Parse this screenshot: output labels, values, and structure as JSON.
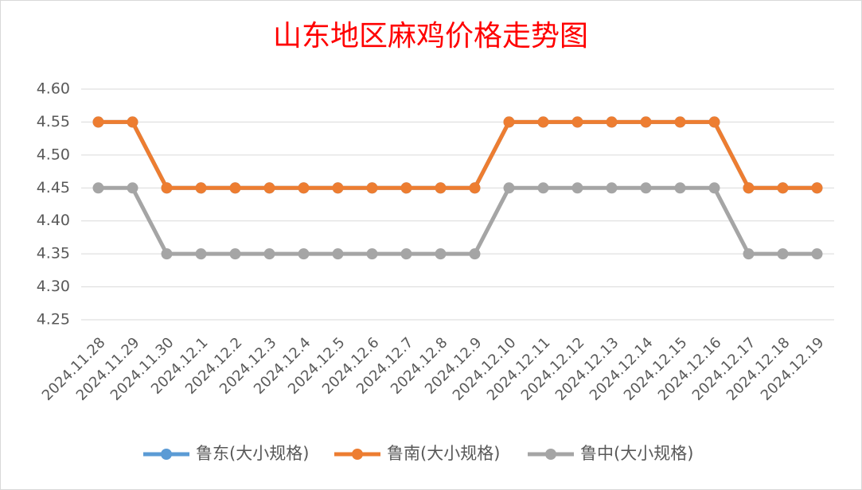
{
  "chart_data": {
    "type": "line",
    "title": "山东地区麻鸡价格走势图",
    "categories": [
      "2024.11.28",
      "2024.11.29",
      "2024.11.30",
      "2024.12.1",
      "2024.12.2",
      "2024.12.3",
      "2024.12.4",
      "2024.12.5",
      "2024.12.6",
      "2024.12.7",
      "2024.12.8",
      "2024.12.9",
      "2024.12.10",
      "2024.12.11",
      "2024.12.12",
      "2024.12.13",
      "2024.12.14",
      "2024.12.15",
      "2024.12.16",
      "2024.12.17",
      "2024.12.18",
      "2024.12.19"
    ],
    "series": [
      {
        "name": "鲁东(大小规格)",
        "color": "#5b9bd5",
        "values": [
          4.55,
          4.55,
          4.45,
          4.45,
          4.45,
          4.45,
          4.45,
          4.45,
          4.45,
          4.45,
          4.45,
          4.45,
          4.55,
          4.55,
          4.55,
          4.55,
          4.55,
          4.55,
          4.55,
          4.45,
          4.45,
          4.45
        ]
      },
      {
        "name": "鲁南(大小规格)",
        "color": "#ed7d31",
        "values": [
          4.55,
          4.55,
          4.45,
          4.45,
          4.45,
          4.45,
          4.45,
          4.45,
          4.45,
          4.45,
          4.45,
          4.45,
          4.55,
          4.55,
          4.55,
          4.55,
          4.55,
          4.55,
          4.55,
          4.45,
          4.45,
          4.45
        ]
      },
      {
        "name": "鲁中(大小规格)",
        "color": "#a5a5a5",
        "values": [
          4.45,
          4.45,
          4.35,
          4.35,
          4.35,
          4.35,
          4.35,
          4.35,
          4.35,
          4.35,
          4.35,
          4.35,
          4.45,
          4.45,
          4.45,
          4.45,
          4.45,
          4.45,
          4.45,
          4.35,
          4.35,
          4.35
        ]
      }
    ],
    "ylim": [
      4.25,
      4.6
    ],
    "yticks": [
      {
        "value": 4.25,
        "label": "4.25"
      },
      {
        "value": 4.3,
        "label": "4.30"
      },
      {
        "value": 4.35,
        "label": "4.35"
      },
      {
        "value": 4.4,
        "label": "4.40"
      },
      {
        "value": 4.45,
        "label": "4.45"
      },
      {
        "value": 4.5,
        "label": "4.50"
      },
      {
        "value": 4.55,
        "label": "4.55"
      },
      {
        "value": 4.6,
        "label": "4.60"
      }
    ],
    "grid": true,
    "legend": "bottom"
  }
}
